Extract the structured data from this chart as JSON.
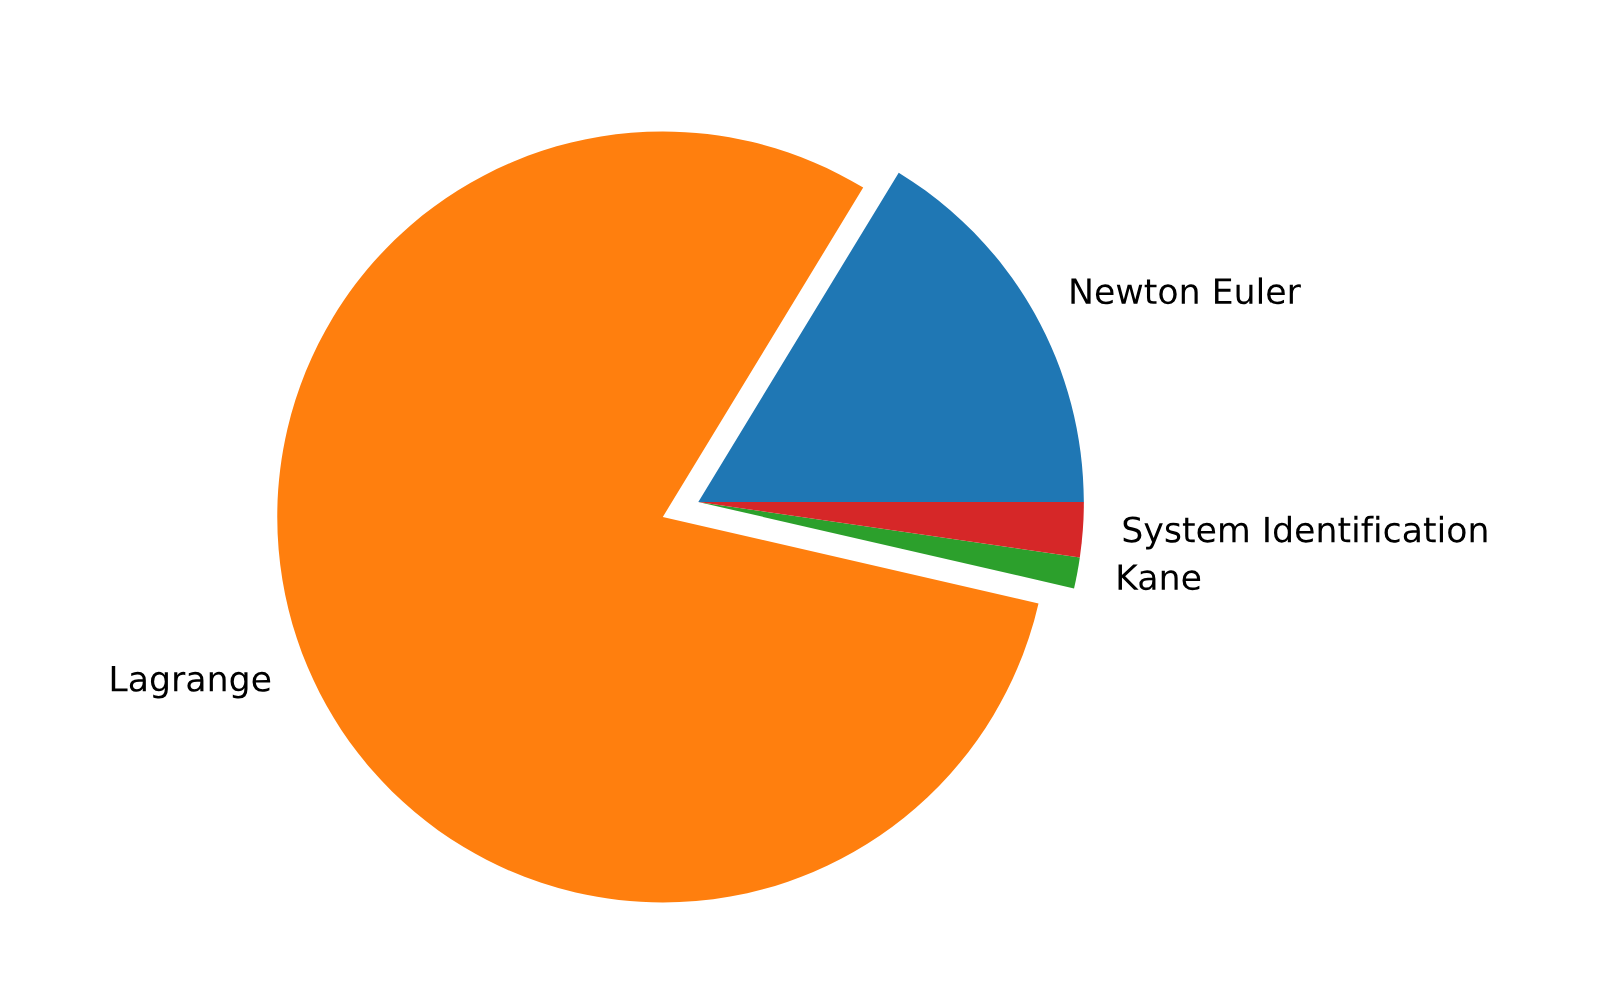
{
  "chart_data": {
    "type": "pie",
    "categories": [
      "Newton Euler",
      "Lagrange",
      "Kane",
      "System Identification"
    ],
    "values": [
      16.3,
      80.1,
      1.3,
      2.3
    ],
    "colors": [
      "#1f77b4",
      "#ff7f0e",
      "#2ca02c",
      "#d62728"
    ]
  }
}
